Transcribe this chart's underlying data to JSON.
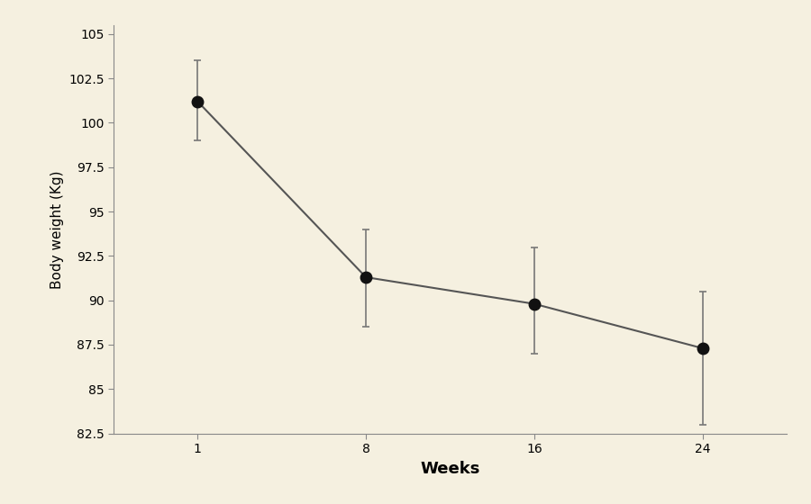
{
  "x_positions": [
    0,
    1,
    2,
    3
  ],
  "x_labels": [
    "1",
    "8",
    "16",
    "24"
  ],
  "y": [
    101.2,
    91.3,
    89.8,
    87.3
  ],
  "yerr_lower": [
    2.2,
    2.8,
    2.8,
    4.3
  ],
  "yerr_upper": [
    2.3,
    2.7,
    3.2,
    3.2
  ],
  "xlabel": "Weeks",
  "ylabel": "Body weight (Kg)",
  "ylim": [
    82.5,
    105.5
  ],
  "xlim": [
    -0.5,
    3.5
  ],
  "yticks": [
    82.5,
    85,
    87.5,
    90,
    92.5,
    95,
    97.5,
    100,
    102.5,
    105
  ],
  "ytick_labels": [
    "82.5",
    "85",
    "87.5",
    "90",
    "92.5",
    "95",
    "97.5",
    "100",
    "102.5",
    "105"
  ],
  "background_color": "#f5f0e0",
  "plot_bg_color": "#f5f0e0",
  "line_color": "#555555",
  "marker_color": "#111111",
  "errorbar_color": "#777777",
  "marker_size": 9,
  "line_width": 1.5,
  "capsize": 3,
  "xlabel_fontsize": 13,
  "ylabel_fontsize": 11,
  "tick_fontsize": 10
}
